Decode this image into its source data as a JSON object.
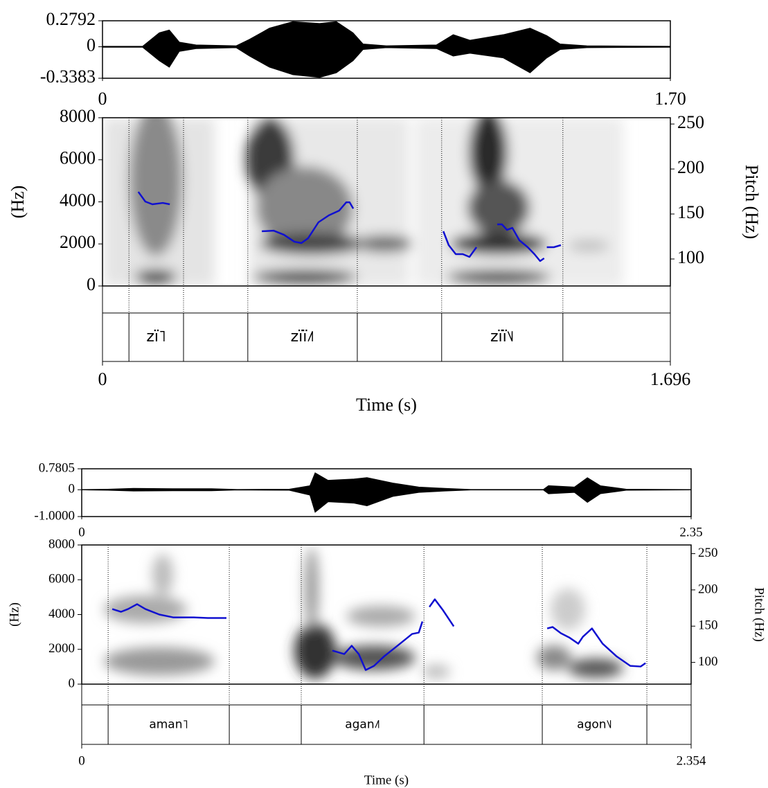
{
  "chart_data": [
    {
      "type": "praat",
      "waveform": {
        "xlim": [
          0,
          1.7
        ],
        "xticks": [
          0,
          {
            "value": 1.7,
            "label": "1.70"
          }
        ],
        "ylim": [
          -0.3383,
          0.2792
        ],
        "yticks": [
          0.2792,
          0,
          -0.3383
        ],
        "x": [
          0,
          0.12,
          0.17,
          0.2,
          0.23,
          0.28,
          0.4,
          0.44,
          0.5,
          0.57,
          0.65,
          0.7,
          0.75,
          0.78,
          0.85,
          1.0,
          1.05,
          1.1,
          1.2,
          1.28,
          1.33,
          1.37,
          1.45,
          1.7
        ],
        "upper": [
          0.005,
          0.005,
          0.15,
          0.18,
          0.05,
          0.02,
          0.01,
          0.08,
          0.2,
          0.27,
          0.25,
          0.27,
          0.15,
          0.03,
          0.01,
          0.02,
          0.13,
          0.07,
          0.13,
          0.2,
          0.12,
          0.03,
          0.01,
          0.005
        ],
        "lower": [
          -0.005,
          -0.005,
          -0.15,
          -0.22,
          -0.05,
          -0.02,
          -0.01,
          -0.1,
          -0.22,
          -0.3,
          -0.33,
          -0.28,
          -0.15,
          -0.03,
          -0.01,
          -0.02,
          -0.1,
          -0.07,
          -0.12,
          -0.28,
          -0.12,
          -0.03,
          -0.01,
          -0.005
        ]
      },
      "spectrogram": {
        "ylabel": "(Hz)",
        "ylim": [
          0,
          8000
        ],
        "yticks": [
          0,
          2000,
          4000,
          6000,
          8000
        ],
        "y2label": "Pitch (Hz)",
        "y2lim": [
          70,
          257
        ],
        "y2ticks": [
          100,
          150,
          200,
          250
        ],
        "pitch_color": "#1010d0",
        "pitch": {
          "x": [
            0.107,
            0.128,
            0.149,
            0.18,
            0.201,
            null,
            0.476,
            0.511,
            0.542,
            0.573,
            0.594,
            0.614,
            0.645,
            0.676,
            0.707,
            0.728,
            0.738,
            0.749,
            null,
            1.018,
            1.034,
            1.055,
            1.076,
            1.096,
            1.117,
            null,
            1.179,
            1.193,
            1.208,
            1.224,
            1.245,
            1.27,
            1.29,
            1.307,
            1.319,
            null,
            1.327,
            1.348,
            1.369
          ],
          "values": [
            174.6,
            163.8,
            160.8,
            162.3,
            160.8,
            null,
            130.8,
            131.5,
            126.9,
            119.2,
            117.7,
            123,
            140.8,
            148.5,
            153.8,
            163,
            163,
            156,
            null,
            130.8,
            115.4,
            105.4,
            105.4,
            102.3,
            113.1,
            null,
            138.5,
            138.5,
            132.3,
            134.6,
            120.8,
            113.1,
            105.4,
            97.7,
            100.8,
            null,
            113.1,
            113.1,
            115.4
          ]
        }
      },
      "textgrid": {
        "xlim": [
          0,
          1.696
        ],
        "xticks": [
          0,
          1.696
        ],
        "xlabel": "Time (s)",
        "boundaries": [
          0.079,
          0.242,
          0.434,
          0.761,
          1.013,
          1.375
        ],
        "labels": [
          null,
          "zï˥",
          null,
          "zïï˩˥",
          null,
          "zïï˥˩",
          null
        ]
      }
    },
    {
      "type": "praat",
      "waveform": {
        "xlim": [
          0,
          2.35
        ],
        "xticks": [
          0,
          2.35
        ],
        "ylim": [
          -1,
          0.7805
        ],
        "yticks": [
          0.7805,
          0,
          {
            "value": -1,
            "label": "-1.0000"
          }
        ],
        "x": [
          0,
          0.1,
          0.2,
          0.35,
          0.5,
          0.6,
          0.8,
          0.88,
          0.9,
          0.95,
          1.05,
          1.1,
          1.2,
          1.3,
          1.4,
          1.5,
          1.78,
          1.8,
          1.9,
          1.95,
          2.0,
          2.1,
          2.35
        ],
        "upper": [
          0.005,
          0.02,
          0.05,
          0.04,
          0.04,
          0.01,
          0.02,
          0.15,
          0.63,
          0.35,
          0.4,
          0.45,
          0.25,
          0.1,
          0.05,
          0.01,
          0.01,
          0.15,
          0.1,
          0.45,
          0.15,
          0.02,
          0.005
        ],
        "lower": [
          -0.005,
          -0.02,
          -0.05,
          -0.04,
          -0.04,
          -0.01,
          -0.02,
          -0.2,
          -0.84,
          -0.45,
          -0.5,
          -0.6,
          -0.25,
          -0.1,
          -0.05,
          -0.01,
          -0.01,
          -0.15,
          -0.1,
          -0.47,
          -0.15,
          -0.02,
          -0.005
        ]
      },
      "spectrogram": {
        "ylabel": "(Hz)",
        "ylim": [
          0,
          8000
        ],
        "yticks": [
          0,
          2000,
          4000,
          6000,
          8000
        ],
        "y2label": "Pitch (Hz)",
        "y2lim": [
          70,
          262
        ],
        "y2ticks": [
          100,
          150,
          200,
          250
        ],
        "pitch_color": "#1010d0",
        "pitch": {
          "x": [
            0.118,
            0.152,
            0.179,
            0.214,
            0.246,
            0.3,
            0.353,
            0.433,
            0.487,
            0.559,
            null,
            0.968,
            1.014,
            1.043,
            1.07,
            1.097,
            1.129,
            1.169,
            1.223,
            1.276,
            1.302,
            1.316,
            null,
            1.343,
            1.364,
            1.396,
            1.437,
            null,
            1.798,
            1.819,
            1.851,
            1.883,
            1.918,
            1.936,
            1.971,
            2.012,
            2.065,
            2.119,
            2.159,
            2.178
          ],
          "values": [
            173.6,
            169.8,
            173.6,
            180.3,
            173.6,
            166,
            162.1,
            162.1,
            161.2,
            161.2,
            null,
            116.3,
            111.5,
            122.9,
            111.5,
            89.5,
            95.2,
            108.6,
            123.9,
            139.2,
            141.1,
            156.4,
            null,
            176.5,
            187,
            171.7,
            149.7,
            null,
            146.8,
            148.8,
            140.2,
            134.4,
            125.8,
            135.4,
            146.8,
            125.8,
            108.6,
            95.2,
            94.3,
            99
          ]
        }
      },
      "textgrid": {
        "xlim": [
          0,
          2.354
        ],
        "xticks": [
          0,
          2.354
        ],
        "xlabel": "Time (s)",
        "boundaries": [
          0.102,
          0.57,
          0.848,
          1.322,
          1.779,
          2.183
        ],
        "labels": [
          null,
          "aman˥",
          null,
          "agan˩˥",
          null,
          "agon˥˩",
          null
        ]
      }
    }
  ]
}
